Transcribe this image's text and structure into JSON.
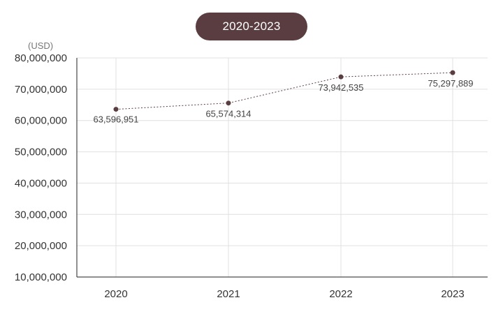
{
  "range_button": {
    "label": "2020-2023"
  },
  "chart_data": {
    "type": "line",
    "title": "",
    "unit_label": "(USD)",
    "x": [
      "2020",
      "2021",
      "2022",
      "2023"
    ],
    "series": [
      {
        "values": [
          63596951,
          65574314,
          73942535,
          75297889
        ],
        "labels": [
          "63,596,951",
          "65,574,314",
          "73,942,535",
          "75,297,889"
        ]
      }
    ],
    "ylim": [
      10000000,
      80000000
    ],
    "yticks": [
      10000000,
      20000000,
      30000000,
      40000000,
      50000000,
      60000000,
      70000000,
      80000000
    ],
    "ytick_labels": [
      "10,000,000",
      "20,000,000",
      "30,000,000",
      "40,000,000",
      "50,000,000",
      "60,000,000",
      "70,000,000",
      "80,000,000"
    ],
    "grid": true,
    "line_style": "dotted",
    "colors": {
      "line": "#5a3d41",
      "marker": "#5a3d41",
      "grid": "#e0e0e0",
      "axis": "#222222"
    }
  }
}
